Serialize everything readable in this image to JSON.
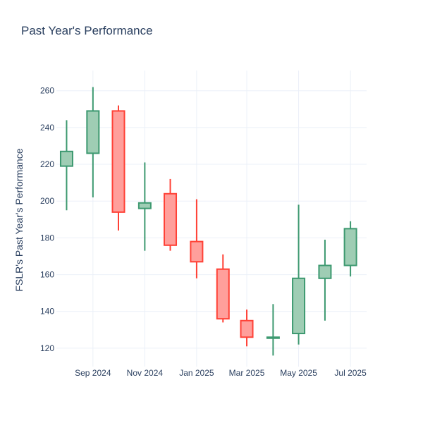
{
  "chart_data": {
    "type": "candlestick",
    "title": "Past Year's Performance",
    "xlabel": "",
    "ylabel": "FSLR's Past Year's Performance",
    "ylim": [
      110,
      271
    ],
    "xlim": [
      "2024-07-20",
      "2025-07-20"
    ],
    "y_ticks": [
      120,
      140,
      160,
      180,
      200,
      220,
      240,
      260
    ],
    "x_ticks": [
      {
        "date": "2024-09-01",
        "label": "Sep 2024"
      },
      {
        "date": "2024-11-01",
        "label": "Nov 2024"
      },
      {
        "date": "2025-01-01",
        "label": "Jan 2025"
      },
      {
        "date": "2025-03-01",
        "label": "Mar 2025"
      },
      {
        "date": "2025-05-01",
        "label": "May 2025"
      },
      {
        "date": "2025-07-01",
        "label": "Jul 2025"
      }
    ],
    "grid": true,
    "colors": {
      "increasing_line": "#3d9970",
      "increasing_fill": "#9fcdb4",
      "decreasing_line": "#ff4136",
      "decreasing_fill": "#ff9f9b",
      "grid": "#ebf0f8",
      "text": "#2a3f5f"
    },
    "candles": [
      {
        "date": "2024-08-01",
        "open": 219,
        "high": 244,
        "low": 195,
        "close": 227
      },
      {
        "date": "2024-09-01",
        "open": 226,
        "high": 262,
        "low": 202,
        "close": 249
      },
      {
        "date": "2024-10-01",
        "open": 249,
        "high": 252,
        "low": 184,
        "close": 194
      },
      {
        "date": "2024-11-01",
        "open": 196,
        "high": 221,
        "low": 173,
        "close": 199
      },
      {
        "date": "2024-12-01",
        "open": 204,
        "high": 212,
        "low": 173,
        "close": 176
      },
      {
        "date": "2025-01-01",
        "open": 178,
        "high": 201,
        "low": 158,
        "close": 167
      },
      {
        "date": "2025-02-01",
        "open": 163,
        "high": 171,
        "low": 134,
        "close": 136
      },
      {
        "date": "2025-03-01",
        "open": 135,
        "high": 141,
        "low": 121,
        "close": 126
      },
      {
        "date": "2025-04-01",
        "open": 126,
        "high": 144,
        "low": 116,
        "close": 126
      },
      {
        "date": "2025-05-01",
        "open": 128,
        "high": 198,
        "low": 122,
        "close": 158
      },
      {
        "date": "2025-06-01",
        "open": 158,
        "high": 179,
        "low": 135,
        "close": 165
      },
      {
        "date": "2025-07-01",
        "open": 165,
        "high": 189,
        "low": 159,
        "close": 185
      }
    ]
  }
}
